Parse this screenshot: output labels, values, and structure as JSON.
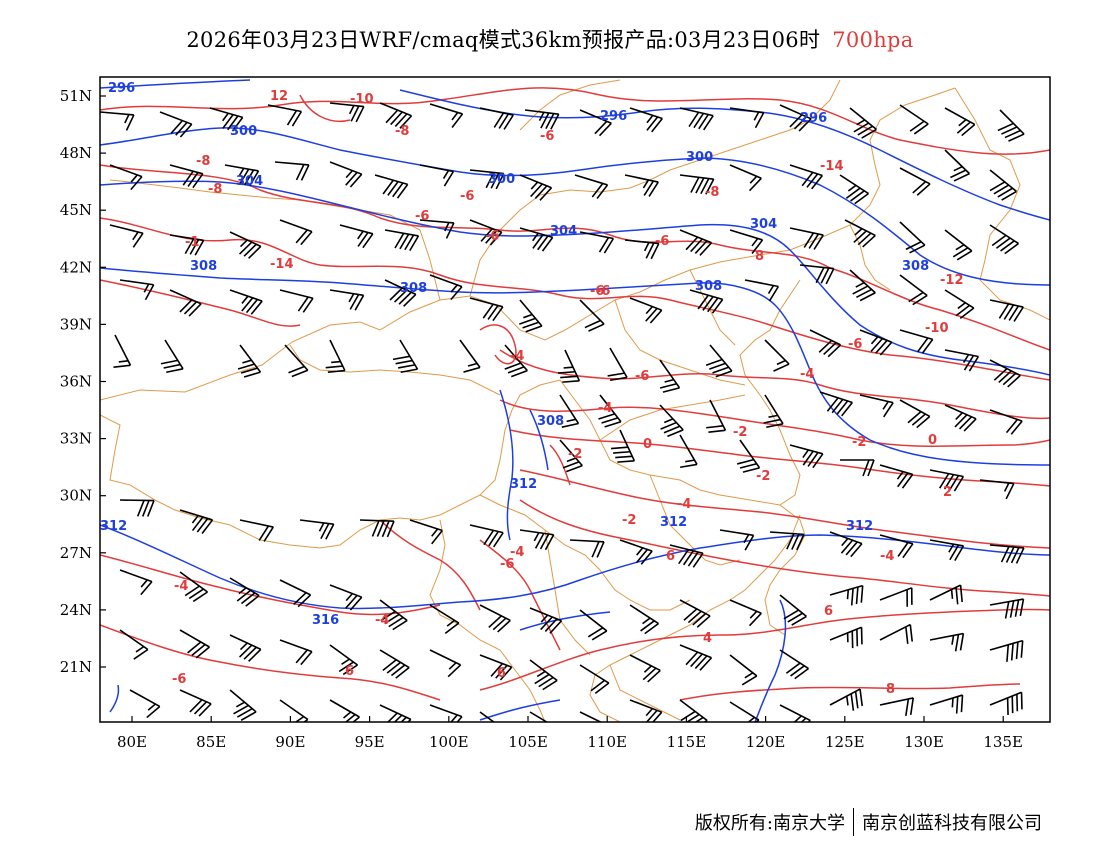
{
  "header": {
    "title": "2026年03月23日WRF/cmaq模式36km预报产品:03月23日06时",
    "level": "700hpa"
  },
  "footer": {
    "copyright": "版权所有:南京大学",
    "company": "南京创蓝科技有限公司"
  },
  "map": {
    "lat_labels": [
      "51N",
      "48N",
      "45N",
      "42N",
      "39N",
      "36N",
      "33N",
      "30N",
      "27N",
      "24N",
      "21N"
    ],
    "lon_labels": [
      "80E",
      "85E",
      "90E",
      "95E",
      "100E",
      "105E",
      "110E",
      "115E",
      "120E",
      "125E",
      "130E",
      "135E"
    ],
    "colors": {
      "height": "#1e3fe0",
      "temperature": "#e23b3b",
      "boundary": "#e09a4a",
      "barb": "#000000"
    },
    "geopotential_labels": [
      "296",
      "296",
      "296",
      "300",
      "300",
      "300",
      "304",
      "304",
      "304",
      "308",
      "308",
      "308",
      "308",
      "308",
      "312",
      "312",
      "312",
      "312",
      "316"
    ],
    "temperature_labels": [
      "12",
      "-10",
      "-8",
      "-8",
      "-8",
      "-6",
      "-6",
      "-6",
      "-6",
      "-6",
      "-6",
      "-14",
      "-1",
      "-14",
      "-8",
      "-12",
      "-10",
      "-6",
      "-4",
      "-6",
      "-4",
      "-4",
      "-4",
      "-2",
      "-2",
      "-2",
      "0",
      "0",
      "-2",
      "2",
      "-2",
      "-4",
      "-4",
      "-4",
      "-6",
      "-4",
      "6",
      "6",
      "4",
      "8",
      "-6",
      "6",
      "6",
      "8",
      "-6"
    ]
  }
}
